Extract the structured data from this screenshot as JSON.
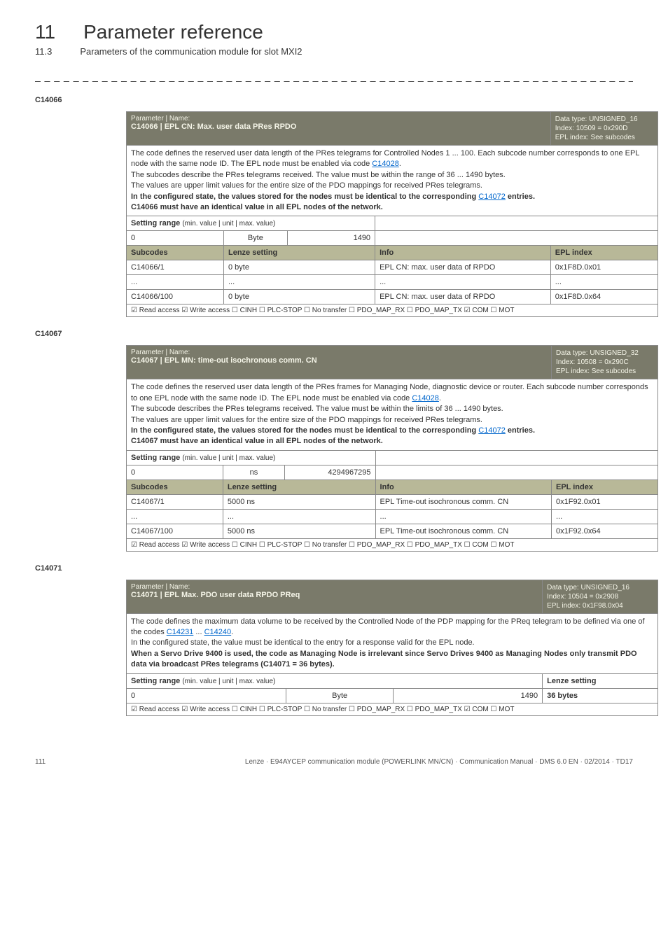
{
  "header": {
    "chapter_num": "11",
    "chapter_title": "Parameter reference",
    "section_num": "11.3",
    "section_title": "Parameters of the communication module for slot MXI2",
    "divider": "_ _ _ _ _ _ _ _ _ _ _ _ _ _ _ _ _ _ _ _ _ _ _ _ _ _ _ _ _ _ _ _ _ _ _ _ _ _ _ _ _ _ _ _ _ _ _ _ _ _ _ _ _ _ _ _ _ _ _ _ _ _ _ _"
  },
  "params": {
    "p1": {
      "code": "C14066",
      "name_label": "Parameter | Name:",
      "name_value": "C14066 | EPL CN: Max. user data PRes RPDO",
      "datatype": "Data type: UNSIGNED_16",
      "index": "Index: 10509 = 0x290D",
      "eplindex": "EPL index: See subcodes",
      "desc1": "The code defines the reserved user data length of the PRes telegrams for Controlled Nodes 1 ... 100. Each subcode number corresponds to one EPL node with the same node ID. The EPL node must be enabled via code ",
      "desc1_link": "C14028",
      "desc1_after": ".",
      "desc2": "The subcodes describe the PRes telegrams received. The value must be within the range of 36 ... 1490 bytes.",
      "desc3": "The values are upper limit values for the entire size of the PDO mappings for received PRes telegrams.",
      "desc4a": "In the configured state, the values stored for the nodes must be identical to the corresponding ",
      "desc4_link": "C14072",
      "desc4b": "  entries.",
      "desc5": "C14066 must have an identical value in all EPL nodes of the network.",
      "sr_label": "Setting range ",
      "sr_sub": "(min. value | unit | max. value)",
      "sr_min": "0",
      "sr_unit": "Byte",
      "sr_max": "1490",
      "subcodes_h": "Subcodes",
      "lenze_h": "Lenze setting",
      "info_h": "Info",
      "epl_h": "EPL index",
      "r1_sc": "C14066/1",
      "r1_ls": "0 byte",
      "r1_info": "EPL CN: max. user data of RPDO",
      "r1_epl": "0x1F8D.0x01",
      "r2_sc": "...",
      "r2_ls": "...",
      "r2_info": "...",
      "r2_epl": "...",
      "r3_sc": "C14066/100",
      "r3_ls": "0 byte",
      "r3_info": "EPL CN: max. user data of RPDO",
      "r3_epl": "0x1F8D.0x64",
      "access": "☑ Read access   ☑ Write access   ☐ CINH   ☐ PLC-STOP   ☐ No transfer   ☐ PDO_MAP_RX   ☐ PDO_MAP_TX   ☑ COM   ☐ MOT"
    },
    "p2": {
      "code": "C14067",
      "name_label": "Parameter | Name:",
      "name_value": "C14067 | EPL MN: time-out isochronous comm. CN",
      "datatype": "Data type: UNSIGNED_32",
      "index": "Index: 10508 = 0x290C",
      "eplindex": "EPL index: See subcodes",
      "desc1": "The code defines the reserved user data length of the PRes frames for Managing Node, diagnostic device or router. Each subcode number corresponds to one EPL node with the same node ID. The EPL node must be enabled via code ",
      "desc1_link": "C14028",
      "desc1_after": ".",
      "desc2": "The subcode describes the PRes telegrams received. The value must be within the limits of 36 ... 1490 bytes.",
      "desc3": "The values are upper limit values for the entire size of the PDO mappings for received PRes telegrams.",
      "desc4a": "In the configured state, the values stored for the nodes must be identical to the corresponding ",
      "desc4_link": "C14072",
      "desc4b": "  entries.",
      "desc5": "C14067 must have an identical value in all EPL nodes of the network.",
      "sr_label": "Setting range ",
      "sr_sub": "(min. value | unit | max. value)",
      "sr_min": "0",
      "sr_unit": "ns",
      "sr_max": "4294967295",
      "subcodes_h": "Subcodes",
      "lenze_h": "Lenze setting",
      "info_h": "Info",
      "epl_h": "EPL index",
      "r1_sc": "C14067/1",
      "r1_ls": "5000 ns",
      "r1_info": "EPL Time-out isochronous comm. CN",
      "r1_epl": "0x1F92.0x01",
      "r2_sc": "...",
      "r2_ls": "...",
      "r2_info": "...",
      "r2_epl": "...",
      "r3_sc": "C14067/100",
      "r3_ls": "5000 ns",
      "r3_info": "EPL Time-out isochronous comm. CN",
      "r3_epl": "0x1F92.0x64",
      "access": "☑ Read access   ☑ Write access   ☐ CINH   ☐ PLC-STOP   ☐ No transfer   ☐ PDO_MAP_RX   ☐ PDO_MAP_TX   ☐ COM   ☐ MOT"
    },
    "p3": {
      "code": "C14071",
      "name_label": "Parameter | Name:",
      "name_value": "C14071 | EPL Max. PDO user data RPDO PReq",
      "datatype": "Data type: UNSIGNED_16",
      "index": "Index: 10504 = 0x2908",
      "eplindex": "EPL index: 0x1F98.0x04",
      "desc1": "The code defines the maximum data volume to be received by the Controlled Node of the PDP mapping for the PReq telegram to be defined via one of the codes ",
      "desc1_link1": "C14231",
      "desc1_mid": "  ... ",
      "desc1_link2": "C14240",
      "desc1_after": ".",
      "desc2": "In the configured state, the value must be identical to the entry for a response valid for the EPL node.",
      "desc3": "When a Servo Drive 9400 is used, the code as Managing Node is irrelevant since Servo Drives 9400 as Managing Nodes only transmit PDO data via broadcast PRes telegrams (C14071 = 36 bytes).",
      "sr_label": "Setting range ",
      "sr_sub": "(min. value | unit | max. value)",
      "lenze_h": "Lenze setting",
      "sr_min": "0",
      "sr_unit": "Byte",
      "sr_max": "1490",
      "lenze_val": "36 bytes",
      "access": "☑ Read access   ☑ Write access   ☐ CINH   ☐ PLC-STOP   ☐ No transfer   ☐ PDO_MAP_RX   ☐ PDO_MAP_TX   ☑ COM   ☐ MOT"
    }
  },
  "footer": {
    "page": "111",
    "text": "Lenze · E94AYCEP communication module (POWERLINK MN/CN) · Communication Manual · DMS 6.0 EN · 02/2014 · TD17"
  }
}
